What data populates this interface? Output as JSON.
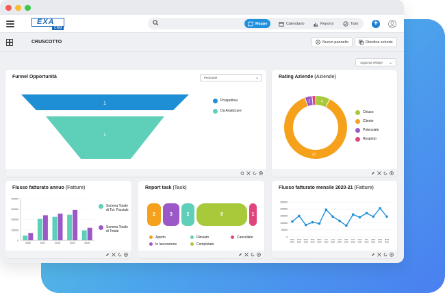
{
  "brand": {
    "logo_text": "EXA",
    "logo_sub": "CRM"
  },
  "nav": {
    "tabs": [
      {
        "label": "Mappe",
        "active": true
      },
      {
        "label": "Calendario",
        "active": false
      },
      {
        "label": "Reports",
        "active": false
      },
      {
        "label": "Task",
        "active": false
      }
    ]
  },
  "page": {
    "title": "CRUSCOTTO",
    "new_panel_button": "Nuovo pannello",
    "reorder_button": "Riordina schede",
    "add_widget": "Aggiungi Widget"
  },
  "funnel": {
    "title": "Funnel Opportunità",
    "filter_value": "Personali",
    "chart_data": {
      "type": "funnel",
      "categories": [
        "Prospettiva",
        "Da Analizzare"
      ],
      "values": [
        1,
        1
      ],
      "colors": [
        "#1e8fd5",
        "#5ecfb8"
      ]
    }
  },
  "rating": {
    "title": "Rating Aziende",
    "subtitle": "(Aziende)",
    "chart_data": {
      "type": "pie",
      "categories": [
        "Chiuso",
        "Cliente",
        "Potenziale",
        "Respinto"
      ],
      "values": [
        4,
        47,
        2,
        1
      ],
      "colors": [
        "#a8c93a",
        "#f5a11c",
        "#9b59c7",
        "#e0457b"
      ]
    }
  },
  "flusso_annuo": {
    "title": "Flusso fatturato annuo",
    "subtitle": "(Fatture)",
    "chart_data": {
      "type": "bar",
      "categories": [
        "2016",
        "2017",
        "2018",
        "2019",
        "2020"
      ],
      "ylim": [
        0,
        400000
      ],
      "yticks": [
        "400000",
        "300000",
        "200000",
        "100000",
        "0"
      ],
      "series": [
        {
          "name": "Somma Totale di Tot. Parziale",
          "color": "#5ecfb8",
          "values": [
            45000,
            205000,
            225000,
            245000,
            95000
          ]
        },
        {
          "name": "Somma Totale di Totale",
          "color": "#9b59c7",
          "values": [
            70000,
            240000,
            255000,
            290000,
            120000
          ]
        }
      ]
    }
  },
  "report_task": {
    "title": "Report task",
    "subtitle": "(Task)",
    "chart_data": {
      "type": "bar",
      "categories": [
        "Aperto",
        "In lavorazione",
        "Rinviato",
        "Completato",
        "Cancellato"
      ],
      "values": [
        2,
        3,
        2,
        9,
        1
      ],
      "colors": [
        "#f5a11c",
        "#9b59c7",
        "#5ecfb8",
        "#a8c93a",
        "#e0457b"
      ]
    }
  },
  "flusso_mensile": {
    "title": "Flusso fatturato mensile 2020-21",
    "subtitle": "(Fatture)",
    "chart_data": {
      "type": "line",
      "color": "#1e8fd5",
      "ylim": [
        0,
        250000
      ],
      "yticks": [
        "250000",
        "200000",
        "150000",
        "100000",
        "50000",
        "0"
      ],
      "categories": [
        "GEN 2020",
        "FEB 2020",
        "MAR 2020",
        "APR 2020",
        "MAG 2020",
        "GIU 2020",
        "LUG 2020",
        "AGO 2020",
        "SET 2020",
        "OTT 2020",
        "NOV 2020",
        "DIC 2020",
        "GEN 2021",
        "FEB 2021",
        "MAR 2021"
      ],
      "values": [
        110000,
        150000,
        85000,
        105000,
        95000,
        195000,
        145000,
        115000,
        80000,
        160000,
        140000,
        170000,
        145000,
        205000,
        145000
      ]
    }
  }
}
